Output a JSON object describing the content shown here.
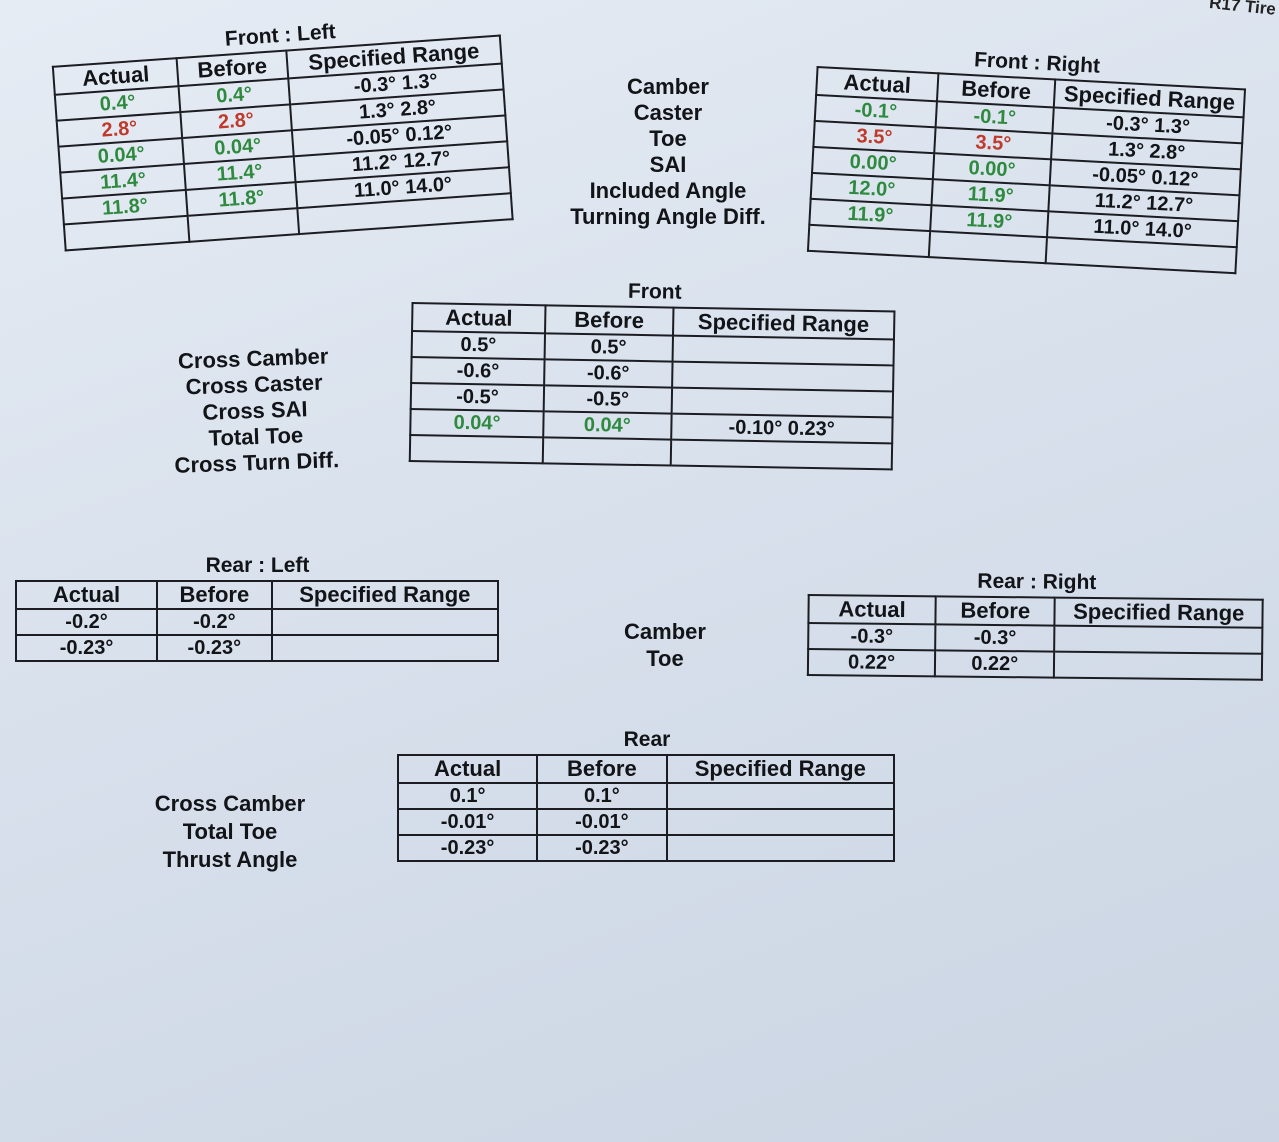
{
  "corner_text": "R17 Tire",
  "front_left": {
    "title": "Front : Left",
    "headers": [
      "Actual",
      "Before",
      "Specified Range"
    ],
    "rows": [
      {
        "actual": "0.4°",
        "before": "0.4°",
        "spec": "-0.3° 1.3°",
        "status": "green"
      },
      {
        "actual": "2.8°",
        "before": "2.8°",
        "spec": "1.3° 2.8°",
        "status": "red"
      },
      {
        "actual": "0.04°",
        "before": "0.04°",
        "spec": "-0.05° 0.12°",
        "status": "green"
      },
      {
        "actual": "11.4°",
        "before": "11.4°",
        "spec": "11.2° 12.7°",
        "status": "green"
      },
      {
        "actual": "11.8°",
        "before": "11.8°",
        "spec": "11.0° 14.0°",
        "status": "green"
      },
      {
        "actual": "",
        "before": "",
        "spec": "",
        "status": "green"
      }
    ]
  },
  "front_labels": [
    "Camber",
    "Caster",
    "Toe",
    "SAI",
    "Included Angle",
    "Turning Angle Diff."
  ],
  "front_right": {
    "title": "Front : Right",
    "headers": [
      "Actual",
      "Before",
      "Specified Range"
    ],
    "rows": [
      {
        "actual": "-0.1°",
        "before": "-0.1°",
        "spec": "-0.3° 1.3°",
        "status": "green"
      },
      {
        "actual": "3.5°",
        "before": "3.5°",
        "spec": "1.3° 2.8°",
        "status": "red"
      },
      {
        "actual": "0.00°",
        "before": "0.00°",
        "spec": "-0.05° 0.12°",
        "status": "green"
      },
      {
        "actual": "12.0°",
        "before": "11.9°",
        "spec": "11.2° 12.7°",
        "status": "green"
      },
      {
        "actual": "11.9°",
        "before": "11.9°",
        "spec": "11.0° 14.0°",
        "status": "green"
      },
      {
        "actual": "",
        "before": "",
        "spec": "",
        "status": "green"
      }
    ]
  },
  "front": {
    "title": "Front",
    "labels": [
      "Cross Camber",
      "Cross Caster",
      "Cross SAI",
      "Total Toe",
      "Cross Turn Diff."
    ],
    "headers": [
      "Actual",
      "Before",
      "Specified Range"
    ],
    "rows": [
      {
        "actual": "0.5°",
        "before": "0.5°",
        "spec": "",
        "status": "black"
      },
      {
        "actual": "-0.6°",
        "before": "-0.6°",
        "spec": "",
        "status": "black"
      },
      {
        "actual": "-0.5°",
        "before": "-0.5°",
        "spec": "",
        "status": "black"
      },
      {
        "actual": "0.04°",
        "before": "0.04°",
        "spec": "-0.10° 0.23°",
        "status": "green"
      },
      {
        "actual": "",
        "before": "",
        "spec": "",
        "status": "black"
      }
    ]
  },
  "rear_left": {
    "title": "Rear : Left",
    "headers": [
      "Actual",
      "Before",
      "Specified Range"
    ],
    "rows": [
      {
        "actual": "-0.2°",
        "before": "-0.2°",
        "spec": "",
        "status": "black"
      },
      {
        "actual": "-0.23°",
        "before": "-0.23°",
        "spec": "",
        "status": "black"
      }
    ]
  },
  "rear_labels": [
    "Camber",
    "Toe"
  ],
  "rear_right": {
    "title": "Rear : Right",
    "headers": [
      "Actual",
      "Before",
      "Specified Range"
    ],
    "rows": [
      {
        "actual": "-0.3°",
        "before": "-0.3°",
        "spec": "",
        "status": "black"
      },
      {
        "actual": "0.22°",
        "before": "0.22°",
        "spec": "",
        "status": "black"
      }
    ]
  },
  "rear": {
    "title": "Rear",
    "labels": [
      "Cross Camber",
      "Total Toe",
      "Thrust Angle"
    ],
    "headers": [
      "Actual",
      "Before",
      "Specified Range"
    ],
    "rows": [
      {
        "actual": "0.1°",
        "before": "0.1°",
        "spec": "",
        "status": "black"
      },
      {
        "actual": "-0.01°",
        "before": "-0.01°",
        "spec": "",
        "status": "black"
      },
      {
        "actual": "-0.23°",
        "before": "-0.23°",
        "spec": "",
        "status": "black"
      }
    ]
  },
  "colors": {
    "in_spec": "#2e8a3e",
    "out_of_spec": "#c0392b"
  }
}
